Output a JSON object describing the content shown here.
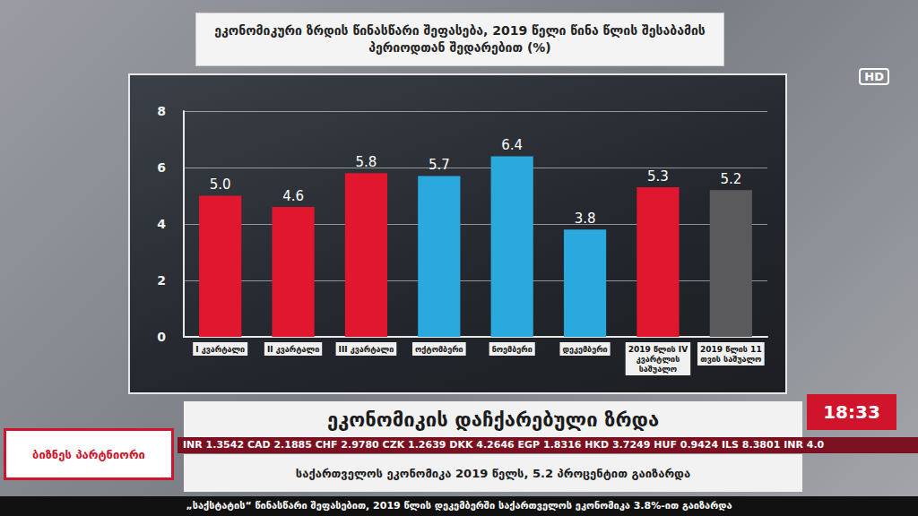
{
  "chart_data": {
    "type": "bar",
    "title": "ეკონომიკური ზრდის წინასწარი შეფასება, 2019 წელი წინა წლის შესაბამის პერიოდთან შედარებით (%)",
    "categories": [
      "I კვარტალი",
      "II კვარტალი",
      "III კვარტალი",
      "ოქტომბერი",
      "ნოემბერი",
      "დეკემბერი",
      "2019 წლის IV კვარტლის საშუალო",
      "2019 წლის 11 თვის საშუალო"
    ],
    "values": [
      5.0,
      4.6,
      5.8,
      5.7,
      6.4,
      3.8,
      5.3,
      5.2
    ],
    "value_labels": [
      "5.0",
      "4.6",
      "5.8",
      "5.7",
      "6.4",
      "3.8",
      "5.3",
      "5.2"
    ],
    "colors": [
      "#e0172f",
      "#e0172f",
      "#e0172f",
      "#2aa9df",
      "#2aa9df",
      "#2aa9df",
      "#e0172f",
      "#5a5a5c"
    ],
    "ylim": [
      0,
      8
    ],
    "yticks": [
      0,
      2,
      4,
      6,
      8
    ],
    "grid": true,
    "data_labels": true,
    "annotations": {
      "headline": "ეკონომიკის დაჩქარებული ზრდა",
      "time": "18:33",
      "logo": "ბიზნეს პარტნიორი",
      "rates": "INR 1.3542 CAD 2.1885 CHF 2.9780 CZK 1.2639 DKK 4.2646 EGP 1.8316 HKD 3.7249 HUF 0.9424 ILS 8.3801 INR 4.0",
      "subtitle": "საქართველოს ეკონომიკა 2019 წელს, 5.2 პროცენტით გაიზარდა",
      "ticker": "„საქსტატის“ წინასწარი შეფასებით, 2019 წლის დეკემბერში საქართველოს ეკონომიკა 3.8%-ით გაიზარდა",
      "channel": "HD"
    }
  }
}
